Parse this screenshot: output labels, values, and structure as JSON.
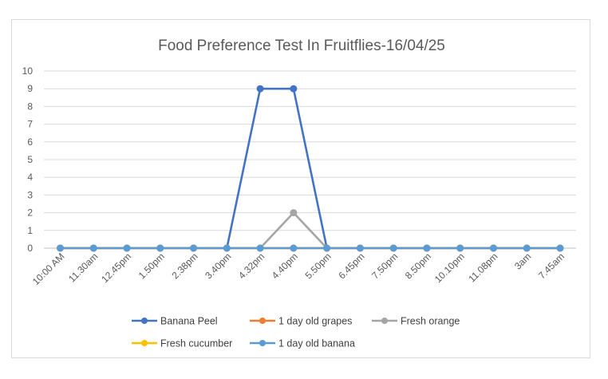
{
  "chart_data": {
    "type": "line",
    "title": "Food Preference Test In Fruitflies-16/04/25",
    "xlabel": "",
    "ylabel": "",
    "ylim": [
      0,
      10
    ],
    "yticks": [
      "0",
      "1",
      "2",
      "3",
      "4",
      "5",
      "6",
      "7",
      "8",
      "9",
      "10"
    ],
    "grid": true,
    "legend_position": "bottom",
    "categories": [
      "10:00 AM",
      "11.30am",
      "12.45pm",
      "1.50pm",
      "2.38pm",
      "3.40pm",
      "4.32pm",
      "4.40pm",
      "5.50pm",
      "6.45pm",
      "7.50pm",
      "8.50pm",
      "10.10pm",
      "11.08pm",
      "3am",
      "7.45am"
    ],
    "series": [
      {
        "name": "Banana Peel",
        "color": "#4472c4",
        "values": [
          0,
          0,
          0,
          0,
          0,
          0,
          9,
          9,
          0,
          0,
          0,
          0,
          0,
          0,
          0,
          0
        ]
      },
      {
        "name": "1 day old grapes",
        "color": "#ed7d31",
        "values": [
          0,
          0,
          0,
          0,
          0,
          0,
          0,
          0,
          0,
          0,
          0,
          0,
          0,
          0,
          0,
          0
        ]
      },
      {
        "name": "Fresh orange",
        "color": "#a5a5a5",
        "values": [
          0,
          0,
          0,
          0,
          0,
          0,
          0,
          2,
          0,
          0,
          0,
          0,
          0,
          0,
          0,
          0
        ]
      },
      {
        "name": "Fresh cucumber",
        "color": "#ffc000",
        "values": [
          0,
          0,
          0,
          0,
          0,
          0,
          0,
          0,
          0,
          0,
          0,
          0,
          0,
          0,
          0,
          0
        ]
      },
      {
        "name": "1 day old banana",
        "color": "#5b9bd5",
        "values": [
          0,
          0,
          0,
          0,
          0,
          0,
          0,
          0,
          0,
          0,
          0,
          0,
          0,
          0,
          0,
          0
        ]
      }
    ]
  }
}
